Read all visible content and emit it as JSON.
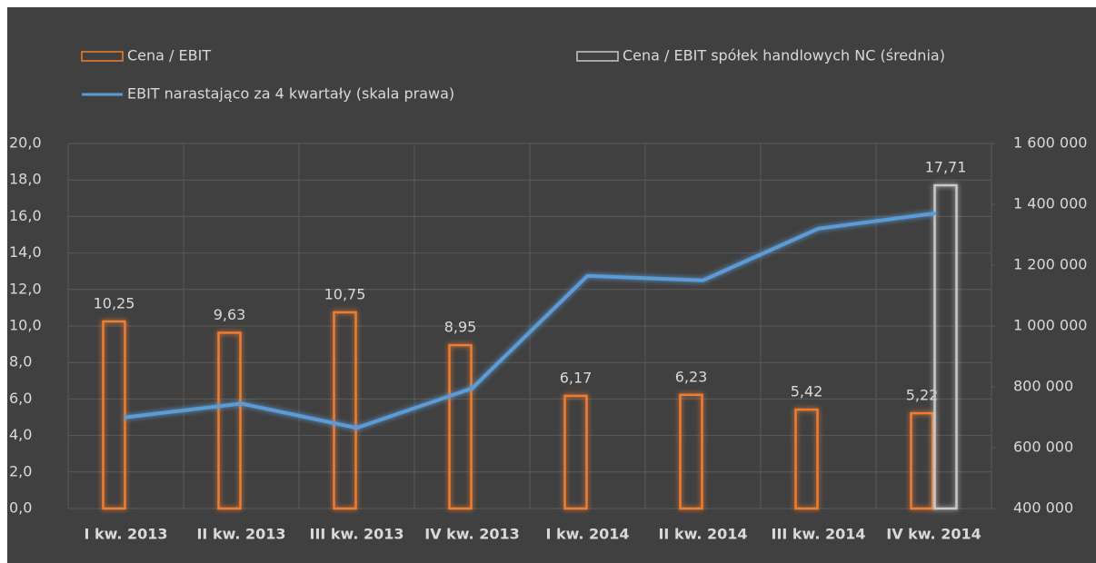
{
  "chart_data": {
    "type": "bar",
    "categories": [
      "I kw. 2013",
      "II kw. 2013",
      "III kw. 2013",
      "IV kw. 2013",
      "I kw. 2014",
      "II kw. 2014",
      "III kw. 2014",
      "IV kw. 2014"
    ],
    "series": [
      {
        "name": "Cena / EBIT",
        "color": "#ed7d31",
        "values": [
          10.25,
          9.63,
          10.75,
          8.95,
          6.17,
          6.23,
          5.42,
          5.22
        ],
        "value_labels": [
          "10,25",
          "9,63",
          "10,75",
          "8,95",
          "6,17",
          "6,23",
          "5,42",
          "5,22"
        ]
      },
      {
        "name": "Cena / EBIT spółek handlowych NC (średnia)",
        "color": "#c9c9c9",
        "values": [
          null,
          null,
          null,
          null,
          null,
          null,
          null,
          17.71
        ],
        "value_labels": [
          null,
          null,
          null,
          null,
          null,
          null,
          null,
          "17,71"
        ]
      },
      {
        "name": "EBIT narastająco za 4 kwartały (skala prawa)",
        "type": "line",
        "axis": "y2",
        "color": "#5b9bd5",
        "values": [
          700000,
          745000,
          665000,
          795000,
          1165000,
          1150000,
          1320000,
          1370000
        ]
      }
    ],
    "ylim": [
      0,
      20
    ],
    "yticks": [
      {
        "value": 0,
        "label": "0,0"
      },
      {
        "value": 2,
        "label": "2,0"
      },
      {
        "value": 4,
        "label": "4,0"
      },
      {
        "value": 6,
        "label": "6,0"
      },
      {
        "value": 8,
        "label": "8,0"
      },
      {
        "value": 10,
        "label": "10,0"
      },
      {
        "value": 12,
        "label": "12,0"
      },
      {
        "value": 14,
        "label": "14,0"
      },
      {
        "value": 16,
        "label": "16,0"
      },
      {
        "value": 18,
        "label": "18,0"
      },
      {
        "value": 20,
        "label": "20,0"
      }
    ],
    "y2lim": [
      400000,
      1600000
    ],
    "y2ticks": [
      {
        "value": 400000,
        "label": "400 000"
      },
      {
        "value": 600000,
        "label": "600 000"
      },
      {
        "value": 800000,
        "label": "800 000"
      },
      {
        "value": 1000000,
        "label": "1 000 000"
      },
      {
        "value": 1200000,
        "label": "1 200 000"
      },
      {
        "value": 1400000,
        "label": "1 400 000"
      },
      {
        "value": 1600000,
        "label": "1 600 000"
      }
    ],
    "grid": true,
    "legend": "top"
  }
}
